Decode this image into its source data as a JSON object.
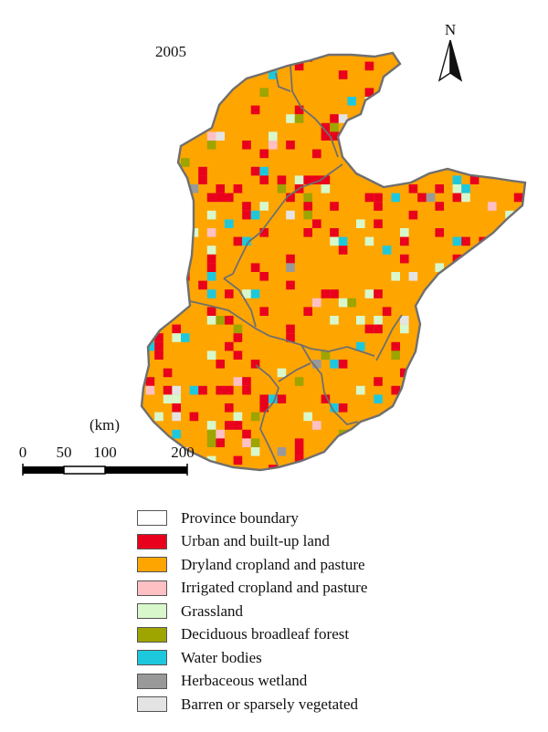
{
  "map": {
    "year": "2005",
    "north_label": "N"
  },
  "scale_bar": {
    "unit": "(km)",
    "ticks": [
      "0",
      "50",
      "100",
      "200"
    ]
  },
  "legend": {
    "items": [
      {
        "label": "Province boundary",
        "color": "#ffffff"
      },
      {
        "label": "Urban and built-up land",
        "color": "#e8001c"
      },
      {
        "label": "Dryland cropland and pasture",
        "color": "#ffa500"
      },
      {
        "label": "Irrigated cropland and pasture",
        "color": "#ffc0c4"
      },
      {
        "label": "Grassland",
        "color": "#d8f8cc"
      },
      {
        "label": "Deciduous broadleaf forest",
        "color": "#9ea400"
      },
      {
        "label": "Water bodies",
        "color": "#1ec8dc"
      },
      {
        "label": "Herbaceous wetland",
        "color": "#999999"
      },
      {
        "label": "Barren or sparsely vegetated",
        "color": "#e4e4e4"
      }
    ]
  }
}
